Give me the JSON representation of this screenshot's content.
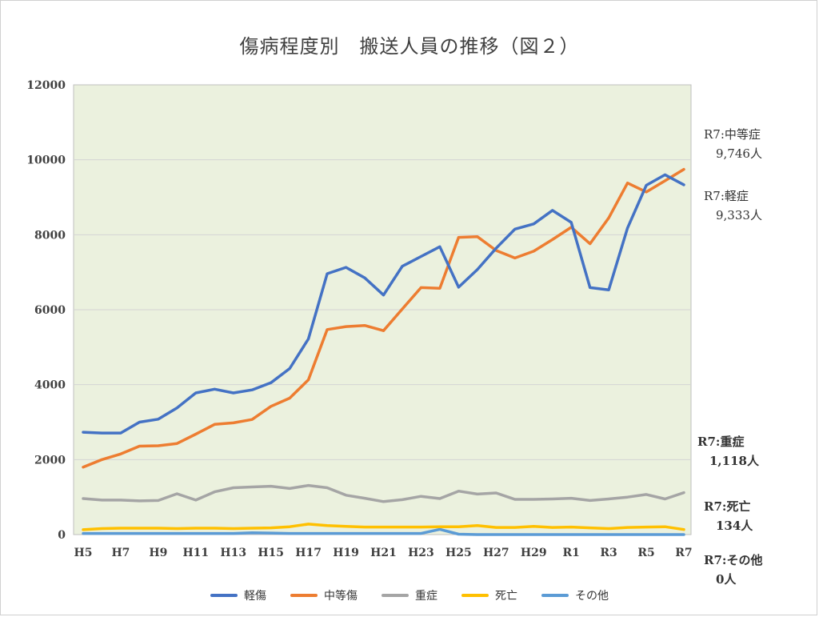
{
  "chart_data": {
    "type": "line",
    "title": "傷病程度別　搬送人員の推移（図２）",
    "categories": [
      "H5",
      "H6",
      "H7",
      "H8",
      "H9",
      "H10",
      "H11",
      "H12",
      "H13",
      "H14",
      "H15",
      "H16",
      "H17",
      "H18",
      "H19",
      "H20",
      "H21",
      "H22",
      "H23",
      "H24",
      "H25",
      "H26",
      "H27",
      "H28",
      "H29",
      "H30",
      "R1",
      "R2",
      "R3",
      "R4",
      "R5",
      "R6",
      "R7"
    ],
    "x_tick_labels": [
      "H5",
      "H7",
      "H9",
      "H11",
      "H13",
      "H15",
      "H17",
      "H19",
      "H21",
      "H23",
      "H25",
      "H27",
      "H29",
      "R1",
      "R3",
      "R5",
      "R7"
    ],
    "y_ticks": [
      "0",
      "2000",
      "4000",
      "6000",
      "8000",
      "10000",
      "12000"
    ],
    "ylim": [
      0,
      12000
    ],
    "grid": true,
    "plot_background": "#ebf1de",
    "legend_position": "bottom",
    "series": [
      {
        "name": "軽傷",
        "color": "#4472c4",
        "values": [
          2730,
          2710,
          2710,
          3000,
          3080,
          3380,
          3780,
          3880,
          3780,
          3860,
          4050,
          4430,
          5220,
          6960,
          7130,
          6850,
          6390,
          7160,
          7420,
          7680,
          6600,
          7070,
          7640,
          8150,
          8290,
          8650,
          8330,
          6590,
          6530,
          8180,
          9320,
          9600,
          9333
        ]
      },
      {
        "name": "中等傷",
        "color": "#ed7d31",
        "values": [
          1800,
          2000,
          2150,
          2360,
          2370,
          2430,
          2680,
          2940,
          2980,
          3070,
          3420,
          3640,
          4130,
          5470,
          5550,
          5580,
          5440,
          6020,
          6590,
          6570,
          7930,
          7950,
          7580,
          7380,
          7560,
          7870,
          8200,
          7760,
          8450,
          9380,
          9140,
          9440,
          9746
        ]
      },
      {
        "name": "重症",
        "color": "#a5a5a5",
        "values": [
          960,
          920,
          920,
          900,
          910,
          1090,
          920,
          1140,
          1250,
          1270,
          1290,
          1230,
          1310,
          1250,
          1050,
          970,
          880,
          930,
          1020,
          960,
          1160,
          1080,
          1110,
          940,
          940,
          950,
          970,
          910,
          950,
          1000,
          1070,
          950,
          1118
        ]
      },
      {
        "name": "死亡",
        "color": "#ffc000",
        "values": [
          130,
          160,
          170,
          170,
          170,
          160,
          170,
          170,
          160,
          170,
          180,
          210,
          280,
          240,
          220,
          200,
          200,
          200,
          200,
          210,
          210,
          240,
          190,
          190,
          220,
          190,
          200,
          180,
          160,
          190,
          200,
          210,
          134
        ]
      },
      {
        "name": "その他",
        "color": "#5b9bd5",
        "values": [
          30,
          30,
          30,
          30,
          30,
          30,
          30,
          30,
          30,
          50,
          40,
          30,
          30,
          30,
          30,
          30,
          30,
          30,
          30,
          140,
          10,
          0,
          0,
          0,
          0,
          0,
          0,
          0,
          0,
          0,
          0,
          0,
          0
        ]
      }
    ],
    "annotations": [
      {
        "id": "chuto",
        "text": "R7:中等症\n　9,746人",
        "bold": false
      },
      {
        "id": "keisho",
        "text": "R7:軽症\n　9,333人",
        "bold": false
      },
      {
        "id": "jusho",
        "text": "R7:重症\n　1,118人",
        "bold": true
      },
      {
        "id": "shibo",
        "text": "R7:死亡\n　134人",
        "bold": true
      },
      {
        "id": "sonota",
        "text": "R7:その他\n　0人",
        "bold": true
      }
    ]
  }
}
